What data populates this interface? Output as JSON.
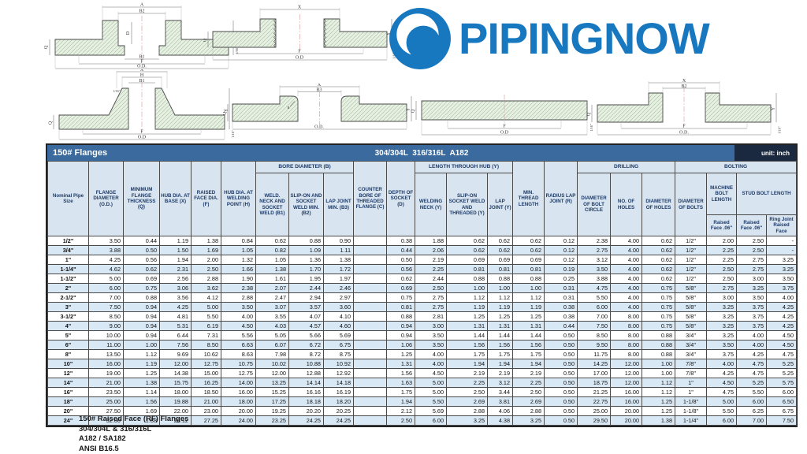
{
  "logo": {
    "text": "PIPINGNOW",
    "color": "#1878bf"
  },
  "table": {
    "title": "150# Flanges",
    "subtitle": "304/304L  316/316L  A182",
    "unit": "unit: inch",
    "groups": {
      "bore": "BORE DIAMETER (B)",
      "length_hub": "LENGTH THROUGH HUB (Y)",
      "drilling": "DRILLING",
      "bolting": "BOLTING",
      "machine_bolt": "MACHINE BOLT LENGTH",
      "stud_bolt": "STUD BOLT LENGTH"
    },
    "columns": [
      "Nominal Pipe Size",
      "FLANGE DIAMETER (O.D.)",
      "MINIMUM FLANGE THICKNESS (Q)",
      "HUB DIA. AT BASE (X)",
      "RAISED FACE DIA. (F)",
      "HUB DIA. AT WELDING POINT (H)",
      "WELD. NECK AND SOCKET WELD (B1)",
      "SLIP-ON AND SOCKET WELD MIN. (B2)",
      "LAP JOINT MIN. (B3)",
      "COUNTER BORE OF THREADED FLANGE (C)",
      "DEPTH OF SOCKET (D)",
      "WELDING NECK (Y)",
      "SLIP-ON SOCKET WELD AND THREADED (Y)",
      "LAP JOINT (Y)",
      "MIN. THREAD LENGTH",
      "RADIUS LAP JOINT (R)",
      "DIAMETER OF BOLT CIRCLE",
      "NO. OF HOLES",
      "DIAMETER OF HOLES",
      "DIAMETER OF BOLTS",
      "Raised Face .06\"",
      "Raised Face .06\"",
      "Ring Joint Raised Face"
    ],
    "rows": [
      [
        "1/2\"",
        "3.50",
        "0.44",
        "1.19",
        "1.38",
        "0.84",
        "0.62",
        "0.88",
        "0.90",
        "",
        "0.38",
        "1.88",
        "0.62",
        "0.62",
        "0.62",
        "0.12",
        "2.38",
        "4.00",
        "0.62",
        "1/2\"",
        "2.00",
        "2.50",
        "-"
      ],
      [
        "3/4\"",
        "3.88",
        "0.50",
        "1.50",
        "1.69",
        "1.05",
        "0.82",
        "1.09",
        "1.11",
        "",
        "0.44",
        "2.06",
        "0.62",
        "0.62",
        "0.62",
        "0.12",
        "2.75",
        "4.00",
        "0.62",
        "1/2\"",
        "2.25",
        "2.50",
        "-"
      ],
      [
        "1\"",
        "4.25",
        "0.56",
        "1.94",
        "2.00",
        "1.32",
        "1.05",
        "1.36",
        "1.38",
        "",
        "0.50",
        "2.19",
        "0.69",
        "0.69",
        "0.69",
        "0.12",
        "3.12",
        "4.00",
        "0.62",
        "1/2\"",
        "2.25",
        "2.75",
        "3.25"
      ],
      [
        "1-1/4\"",
        "4.62",
        "0.62",
        "2.31",
        "2.50",
        "1.66",
        "1.38",
        "1.70",
        "1.72",
        "",
        "0.56",
        "2.25",
        "0.81",
        "0.81",
        "0.81",
        "0.19",
        "3.50",
        "4.00",
        "0.62",
        "1/2\"",
        "2.50",
        "2.75",
        "3.25"
      ],
      [
        "1-1/2\"",
        "5.00",
        "0.69",
        "2.56",
        "2.88",
        "1.90",
        "1.61",
        "1.95",
        "1.97",
        "",
        "0.62",
        "2.44",
        "0.88",
        "0.88",
        "0.88",
        "0.25",
        "3.88",
        "4.00",
        "0.62",
        "1/2\"",
        "2.50",
        "3.00",
        "3.50"
      ],
      [
        "2\"",
        "6.00",
        "0.75",
        "3.06",
        "3.62",
        "2.38",
        "2.07",
        "2.44",
        "2.46",
        "",
        "0.69",
        "2.50",
        "1.00",
        "1.00",
        "1.00",
        "0.31",
        "4.75",
        "4.00",
        "0.75",
        "5/8\"",
        "2.75",
        "3.25",
        "3.75"
      ],
      [
        "2-1/2\"",
        "7.00",
        "0.88",
        "3.56",
        "4.12",
        "2.88",
        "2.47",
        "2.94",
        "2.97",
        "",
        "0.75",
        "2.75",
        "1.12",
        "1.12",
        "1.12",
        "0.31",
        "5.50",
        "4.00",
        "0.75",
        "5/8\"",
        "3.00",
        "3.50",
        "4.00"
      ],
      [
        "3\"",
        "7.50",
        "0.94",
        "4.25",
        "5.00",
        "3.50",
        "3.07",
        "3.57",
        "3.60",
        "",
        "0.81",
        "2.75",
        "1.19",
        "1.19",
        "1.19",
        "0.38",
        "6.00",
        "4.00",
        "0.75",
        "5/8\"",
        "3.25",
        "3.75",
        "4.25"
      ],
      [
        "3-1/2\"",
        "8.50",
        "0.94",
        "4.81",
        "5.50",
        "4.00",
        "3.55",
        "4.07",
        "4.10",
        "",
        "0.88",
        "2.81",
        "1.25",
        "1.25",
        "1.25",
        "0.38",
        "7.00",
        "8.00",
        "0.75",
        "5/8\"",
        "3.25",
        "3.75",
        "4.25"
      ],
      [
        "4\"",
        "9.00",
        "0.94",
        "5.31",
        "6.19",
        "4.50",
        "4.03",
        "4.57",
        "4.60",
        "",
        "0.94",
        "3.00",
        "1.31",
        "1.31",
        "1.31",
        "0.44",
        "7.50",
        "8.00",
        "0.75",
        "5/8\"",
        "3.25",
        "3.75",
        "4.25"
      ],
      [
        "5\"",
        "10.00",
        "0.94",
        "6.44",
        "7.31",
        "5.56",
        "5.05",
        "5.66",
        "5.69",
        "",
        "0.94",
        "3.50",
        "1.44",
        "1.44",
        "1.44",
        "0.50",
        "8.50",
        "8.00",
        "0.88",
        "3/4\"",
        "3.25",
        "4.00",
        "4.50"
      ],
      [
        "6\"",
        "11.00",
        "1.00",
        "7.56",
        "8.50",
        "6.63",
        "6.07",
        "6.72",
        "6.75",
        "",
        "1.06",
        "3.50",
        "1.56",
        "1.56",
        "1.56",
        "0.50",
        "9.50",
        "8.00",
        "0.88",
        "3/4\"",
        "3.50",
        "4.00",
        "4.50"
      ],
      [
        "8\"",
        "13.50",
        "1.12",
        "9.69",
        "10.62",
        "8.63",
        "7.98",
        "8.72",
        "8.75",
        "",
        "1.25",
        "4.00",
        "1.75",
        "1.75",
        "1.75",
        "0.50",
        "11.75",
        "8.00",
        "0.88",
        "3/4\"",
        "3.75",
        "4.25",
        "4.75"
      ],
      [
        "10\"",
        "16.00",
        "1.19",
        "12.00",
        "12.75",
        "10.75",
        "10.02",
        "10.88",
        "10.92",
        "",
        "1.31",
        "4.00",
        "1.94",
        "1.94",
        "1.94",
        "0.50",
        "14.25",
        "12.00",
        "1.00",
        "7/8\"",
        "4.00",
        "4.75",
        "5.25"
      ],
      [
        "12\"",
        "19.00",
        "1.25",
        "14.38",
        "15.00",
        "12.75",
        "12.00",
        "12.88",
        "12.92",
        "",
        "1.56",
        "4.50",
        "2.19",
        "2.19",
        "2.19",
        "0.50",
        "17.00",
        "12.00",
        "1.00",
        "7/8\"",
        "4.25",
        "4.75",
        "5.25"
      ],
      [
        "14\"",
        "21.00",
        "1.38",
        "15.75",
        "16.25",
        "14.00",
        "13.25",
        "14.14",
        "14.18",
        "",
        "1.63",
        "5.00",
        "2.25",
        "3.12",
        "2.25",
        "0.50",
        "18.75",
        "12.00",
        "1.12",
        "1\"",
        "4.50",
        "5.25",
        "5.75"
      ],
      [
        "16\"",
        "23.50",
        "1.14",
        "18.00",
        "18.50",
        "16.00",
        "15.25",
        "16.16",
        "16.19",
        "",
        "1.75",
        "5.00",
        "2.50",
        "3.44",
        "2.50",
        "0.50",
        "21.25",
        "16.00",
        "1.12",
        "1\"",
        "4.75",
        "5.50",
        "6.00"
      ],
      [
        "18\"",
        "25.00",
        "1.56",
        "19.88",
        "21.00",
        "18.00",
        "17.25",
        "18.18",
        "18.20",
        "",
        "1.94",
        "5.50",
        "2.69",
        "3.81",
        "2.69",
        "0.50",
        "22.75",
        "16.00",
        "1.25",
        "1-1/8\"",
        "5.00",
        "6.00",
        "6.50"
      ],
      [
        "20\"",
        "27.50",
        "1.69",
        "22.00",
        "23.00",
        "20.00",
        "19.25",
        "20.20",
        "20.25",
        "",
        "2.12",
        "5.69",
        "2.88",
        "4.06",
        "2.88",
        "0.50",
        "25.00",
        "20.00",
        "1.25",
        "1-1/8\"",
        "5.50",
        "6.25",
        "6.75"
      ],
      [
        "24\"",
        "32.00",
        "1.88",
        "26.12",
        "27.25",
        "24.00",
        "23.25",
        "24.25",
        "24.25",
        "",
        "2.50",
        "6.00",
        "3.25",
        "4.38",
        "3.25",
        "0.50",
        "29.50",
        "20.00",
        "1.38",
        "1-1/4\"",
        "6.00",
        "7.00",
        "7.50"
      ]
    ]
  },
  "diagrams": [
    {
      "name": "socket-weld-flange",
      "labels": [
        "A",
        "B2",
        "D",
        "B1",
        "F",
        "O.D.",
        "Q",
        "Y",
        "1/16\""
      ]
    },
    {
      "name": "threaded-flange",
      "labels": [
        "X",
        "F",
        "O.D",
        "Q",
        "Y",
        "1/16\""
      ]
    },
    {
      "name": "weld-neck-flange",
      "labels": [
        "X",
        "H",
        "B1",
        "1/16\"",
        "Q",
        "F",
        "O.D",
        "Y",
        "1/16\""
      ]
    },
    {
      "name": "lap-joint-flange",
      "labels": [
        "X",
        "B3",
        "R",
        "Q",
        "O.D.",
        "Y"
      ]
    },
    {
      "name": "blind-flange",
      "labels": [
        "Q",
        "F",
        "O.D",
        "1/16\""
      ]
    },
    {
      "name": "slip-on-flange",
      "labels": [
        "X",
        "B2",
        "Q",
        "F",
        "O.D.",
        "Y",
        "1/16\""
      ]
    }
  ],
  "notes": {
    "line1": "150# Raised Face (RF) Flanges",
    "line2": "304/304L & 316/316L",
    "line3": "A182 / SA182",
    "line4": "ANSI B16.5"
  }
}
